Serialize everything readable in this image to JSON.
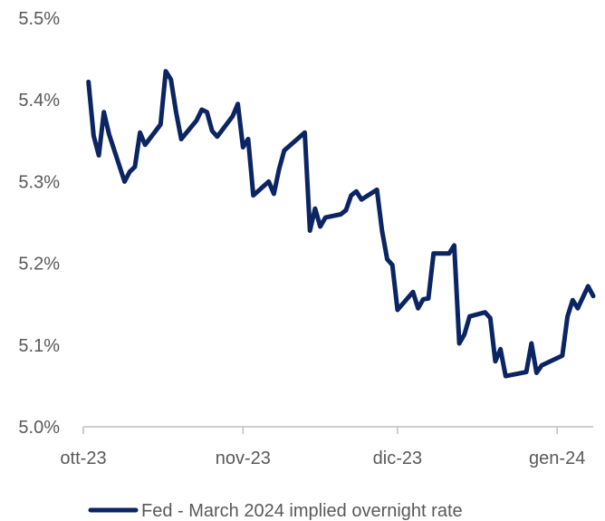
{
  "chart_data": {
    "type": "line",
    "title": "",
    "xlabel": "",
    "ylabel": "",
    "ylim": [
      5.0,
      5.5
    ],
    "y_ticks": [
      "5.0%",
      "5.1%",
      "5.2%",
      "5.3%",
      "5.4%",
      "5.5%"
    ],
    "y_tick_values": [
      5.0,
      5.1,
      5.2,
      5.3,
      5.4,
      5.5
    ],
    "x_ticks": [
      "ott-23",
      "nov-23",
      "dic-23",
      "gen-24"
    ],
    "x_tick_dates": [
      "2023-10-01",
      "2023-11-01",
      "2023-12-01",
      "2024-01-01"
    ],
    "xlim": [
      "2023-10-01",
      "2024-01-08"
    ],
    "grid": false,
    "legend_position": "bottom",
    "series": [
      {
        "name": "Fed - March 2024 implied overnight rate",
        "color": "#0b2463",
        "points": [
          [
            "2023-10-02",
            5.422
          ],
          [
            "2023-10-03",
            5.356
          ],
          [
            "2023-10-04",
            5.332
          ],
          [
            "2023-10-05",
            5.385
          ],
          [
            "2023-10-06",
            5.358
          ],
          [
            "2023-10-09",
            5.3
          ],
          [
            "2023-10-10",
            5.312
          ],
          [
            "2023-10-11",
            5.318
          ],
          [
            "2023-10-12",
            5.36
          ],
          [
            "2023-10-13",
            5.345
          ],
          [
            "2023-10-16",
            5.37
          ],
          [
            "2023-10-17",
            5.435
          ],
          [
            "2023-10-18",
            5.425
          ],
          [
            "2023-10-19",
            5.385
          ],
          [
            "2023-10-20",
            5.352
          ],
          [
            "2023-10-23",
            5.375
          ],
          [
            "2023-10-24",
            5.388
          ],
          [
            "2023-10-25",
            5.385
          ],
          [
            "2023-10-26",
            5.362
          ],
          [
            "2023-10-27",
            5.355
          ],
          [
            "2023-10-30",
            5.38
          ],
          [
            "2023-10-31",
            5.395
          ],
          [
            "2023-11-01",
            5.342
          ],
          [
            "2023-11-02",
            5.352
          ],
          [
            "2023-11-03",
            5.283
          ],
          [
            "2023-11-06",
            5.3
          ],
          [
            "2023-11-07",
            5.285
          ],
          [
            "2023-11-08",
            5.315
          ],
          [
            "2023-11-09",
            5.338
          ],
          [
            "2023-11-13",
            5.36
          ],
          [
            "2023-11-14",
            5.24
          ],
          [
            "2023-11-15",
            5.267
          ],
          [
            "2023-11-16",
            5.245
          ],
          [
            "2023-11-17",
            5.256
          ],
          [
            "2023-11-20",
            5.26
          ],
          [
            "2023-11-21",
            5.265
          ],
          [
            "2023-11-22",
            5.283
          ],
          [
            "2023-11-23",
            5.288
          ],
          [
            "2023-11-24",
            5.278
          ],
          [
            "2023-11-27",
            5.29
          ],
          [
            "2023-11-28",
            5.24
          ],
          [
            "2023-11-29",
            5.205
          ],
          [
            "2023-11-30",
            5.198
          ],
          [
            "2023-12-01",
            5.143
          ],
          [
            "2023-12-04",
            5.165
          ],
          [
            "2023-12-05",
            5.145
          ],
          [
            "2023-12-06",
            5.156
          ],
          [
            "2023-12-07",
            5.157
          ],
          [
            "2023-12-08",
            5.212
          ],
          [
            "2023-12-11",
            5.212
          ],
          [
            "2023-12-12",
            5.222
          ],
          [
            "2023-12-13",
            5.102
          ],
          [
            "2023-12-14",
            5.113
          ],
          [
            "2023-12-15",
            5.135
          ],
          [
            "2023-12-18",
            5.14
          ],
          [
            "2023-12-19",
            5.133
          ],
          [
            "2023-12-20",
            5.08
          ],
          [
            "2023-12-21",
            5.095
          ],
          [
            "2023-12-22",
            5.062
          ],
          [
            "2023-12-26",
            5.067
          ],
          [
            "2023-12-27",
            5.102
          ],
          [
            "2023-12-28",
            5.066
          ],
          [
            "2023-12-29",
            5.075
          ],
          [
            "2024-01-02",
            5.087
          ],
          [
            "2024-01-03",
            5.135
          ],
          [
            "2024-01-04",
            5.155
          ],
          [
            "2024-01-05",
            5.145
          ],
          [
            "2024-01-07",
            5.172
          ],
          [
            "2024-01-08",
            5.16
          ]
        ]
      }
    ]
  }
}
